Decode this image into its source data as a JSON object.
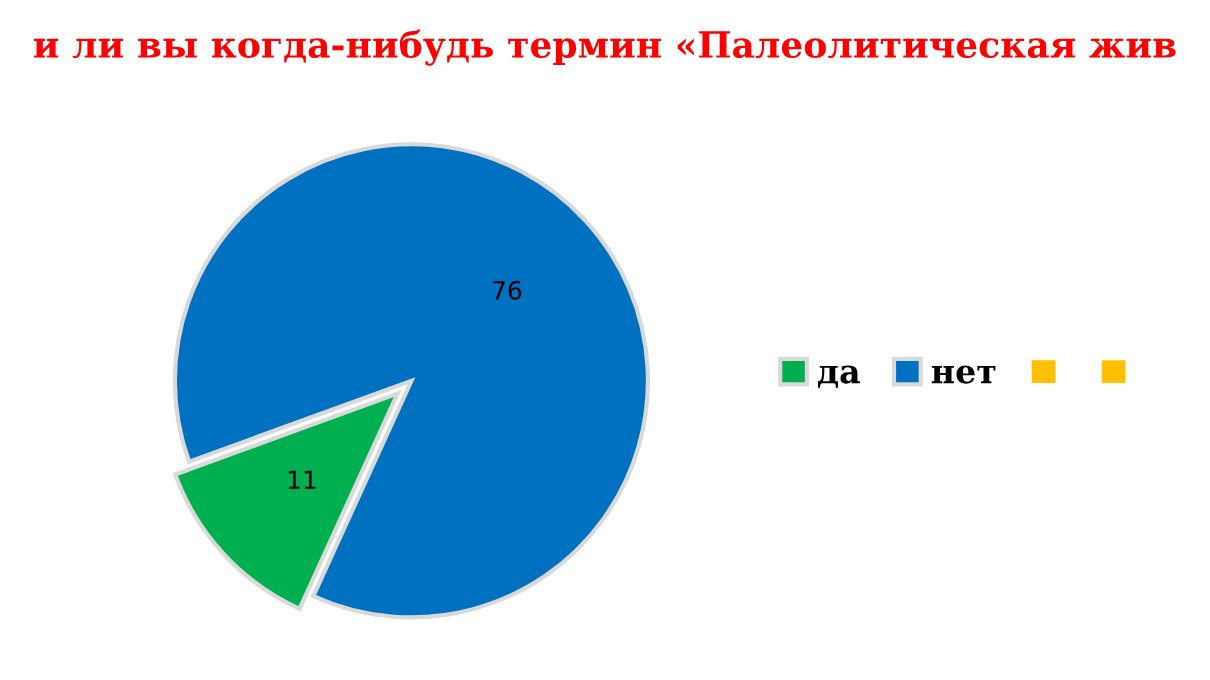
{
  "chart_data": {
    "type": "pie",
    "title": "и ли вы когда-нибудь термин «Палеолитическая жив",
    "categories": [
      "да",
      "нет",
      null,
      null
    ],
    "values": [
      11,
      76,
      null,
      null
    ],
    "colors": [
      "#00b050",
      "#0070c0",
      "#ffc000",
      "#ffc000"
    ],
    "data_labels": true,
    "legend": "right"
  }
}
